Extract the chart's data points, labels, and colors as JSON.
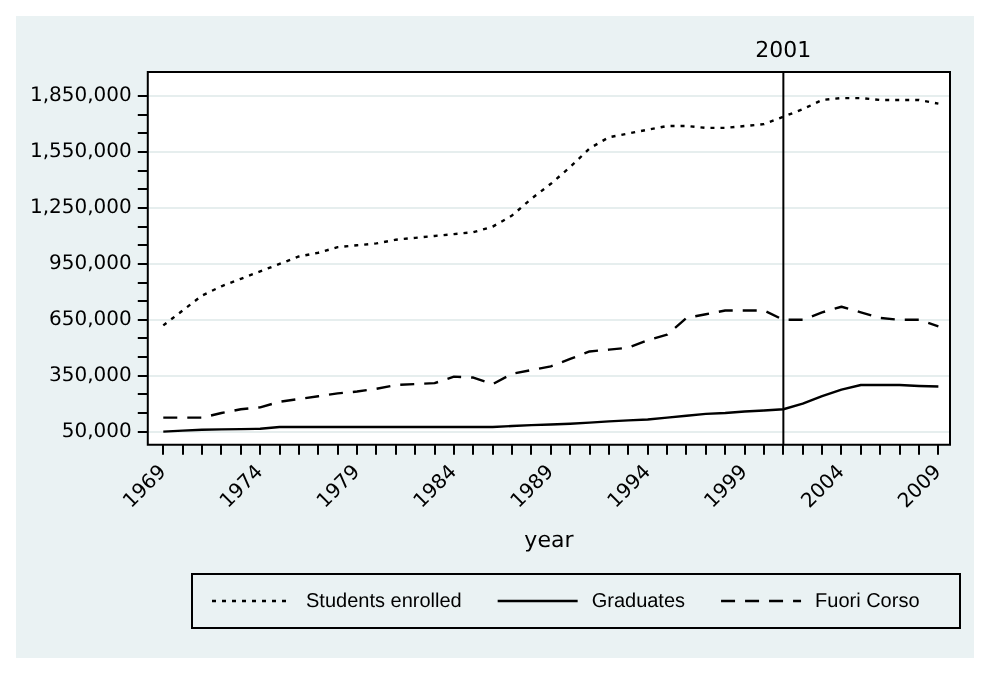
{
  "chart_data": {
    "type": "line",
    "xlabel": "year",
    "x": [
      1969,
      1970,
      1971,
      1972,
      1973,
      1974,
      1975,
      1976,
      1977,
      1978,
      1979,
      1980,
      1981,
      1982,
      1983,
      1984,
      1985,
      1986,
      1987,
      1988,
      1989,
      1990,
      1991,
      1992,
      1993,
      1994,
      1995,
      1996,
      1997,
      1998,
      1999,
      2000,
      2001,
      2002,
      2003,
      2004,
      2005,
      2006,
      2007,
      2008,
      2009
    ],
    "series": [
      {
        "name": "Students enrolled",
        "color": "#000000",
        "line_style": "dotted",
        "values": [
          620000,
          700000,
          780000,
          830000,
          870000,
          910000,
          950000,
          990000,
          1010000,
          1040000,
          1050000,
          1060000,
          1080000,
          1090000,
          1100000,
          1110000,
          1120000,
          1150000,
          1210000,
          1300000,
          1380000,
          1470000,
          1570000,
          1630000,
          1650000,
          1670000,
          1690000,
          1690000,
          1680000,
          1680000,
          1690000,
          1700000,
          1740000,
          1780000,
          1830000,
          1840000,
          1840000,
          1830000,
          1830000,
          1830000,
          1810000
        ]
      },
      {
        "name": "Graduates",
        "color": "#000000",
        "line_style": "solid",
        "values": [
          50000,
          55000,
          60000,
          62000,
          63000,
          65000,
          75000,
          75000,
          75000,
          75000,
          75000,
          75000,
          75000,
          75000,
          75000,
          75000,
          75000,
          75000,
          80000,
          85000,
          88000,
          92000,
          98000,
          105000,
          110000,
          115000,
          125000,
          135000,
          145000,
          150000,
          158000,
          163000,
          170000,
          200000,
          240000,
          275000,
          300000,
          300000,
          300000,
          295000,
          292000
        ]
      },
      {
        "name": "Fuori Corso",
        "color": "#000000",
        "line_style": "dashed",
        "values": [
          125000,
          125000,
          125000,
          150000,
          170000,
          180000,
          210000,
          225000,
          240000,
          255000,
          265000,
          280000,
          300000,
          305000,
          310000,
          345000,
          340000,
          305000,
          360000,
          380000,
          400000,
          440000,
          480000,
          490000,
          500000,
          540000,
          570000,
          660000,
          680000,
          700000,
          700000,
          700000,
          650000,
          650000,
          690000,
          720000,
          690000,
          660000,
          650000,
          650000,
          615000
        ]
      }
    ],
    "xlim": [
      1968.2,
      2009.6
    ],
    "xticks": [
      {
        "value": 1969,
        "label": "1969"
      },
      {
        "value": 1970,
        "label": null
      },
      {
        "value": 1971,
        "label": null
      },
      {
        "value": 1972,
        "label": null
      },
      {
        "value": 1973,
        "label": null
      },
      {
        "value": 1974,
        "label": "1974"
      },
      {
        "value": 1975,
        "label": null
      },
      {
        "value": 1976,
        "label": null
      },
      {
        "value": 1977,
        "label": null
      },
      {
        "value": 1978,
        "label": null
      },
      {
        "value": 1979,
        "label": "1979"
      },
      {
        "value": 1980,
        "label": null
      },
      {
        "value": 1981,
        "label": null
      },
      {
        "value": 1982,
        "label": null
      },
      {
        "value": 1983,
        "label": null
      },
      {
        "value": 1984,
        "label": "1984"
      },
      {
        "value": 1985,
        "label": null
      },
      {
        "value": 1986,
        "label": null
      },
      {
        "value": 1987,
        "label": null
      },
      {
        "value": 1988,
        "label": null
      },
      {
        "value": 1989,
        "label": "1989"
      },
      {
        "value": 1990,
        "label": null
      },
      {
        "value": 1991,
        "label": null
      },
      {
        "value": 1992,
        "label": null
      },
      {
        "value": 1993,
        "label": null
      },
      {
        "value": 1994,
        "label": "1994"
      },
      {
        "value": 1995,
        "label": null
      },
      {
        "value": 1996,
        "label": null
      },
      {
        "value": 1997,
        "label": null
      },
      {
        "value": 1998,
        "label": null
      },
      {
        "value": 1999,
        "label": "1999"
      },
      {
        "value": 2000,
        "label": null
      },
      {
        "value": 2001,
        "label": null
      },
      {
        "value": 2002,
        "label": null
      },
      {
        "value": 2003,
        "label": null
      },
      {
        "value": 2004,
        "label": "2004"
      },
      {
        "value": 2005,
        "label": null
      },
      {
        "value": 2006,
        "label": null
      },
      {
        "value": 2007,
        "label": null
      },
      {
        "value": 2008,
        "label": null
      },
      {
        "value": 2009,
        "label": "2009"
      }
    ],
    "ylim": [
      -20000,
      1980000
    ],
    "yticks": [
      {
        "value": 50000,
        "label": "50,000"
      },
      {
        "value": 150000,
        "label": null
      },
      {
        "value": 250000,
        "label": null
      },
      {
        "value": 350000,
        "label": "350,000"
      },
      {
        "value": 450000,
        "label": null
      },
      {
        "value": 550000,
        "label": null
      },
      {
        "value": 650000,
        "label": "650,000"
      },
      {
        "value": 750000,
        "label": null
      },
      {
        "value": 850000,
        "label": null
      },
      {
        "value": 950000,
        "label": "950,000"
      },
      {
        "value": 1050000,
        "label": null
      },
      {
        "value": 1150000,
        "label": null
      },
      {
        "value": 1250000,
        "label": "1,250,000"
      },
      {
        "value": 1350000,
        "label": null
      },
      {
        "value": 1450000,
        "label": null
      },
      {
        "value": 1550000,
        "label": "1,550,000"
      },
      {
        "value": 1650000,
        "label": null
      },
      {
        "value": 1750000,
        "label": null
      },
      {
        "value": 1850000,
        "label": "1,850,000"
      }
    ],
    "ref_lines": [
      {
        "axis": "x",
        "value": 2001,
        "label": "2001",
        "color": "#000000"
      }
    ],
    "grid": "y",
    "legend": "bottom",
    "marker": "none"
  }
}
